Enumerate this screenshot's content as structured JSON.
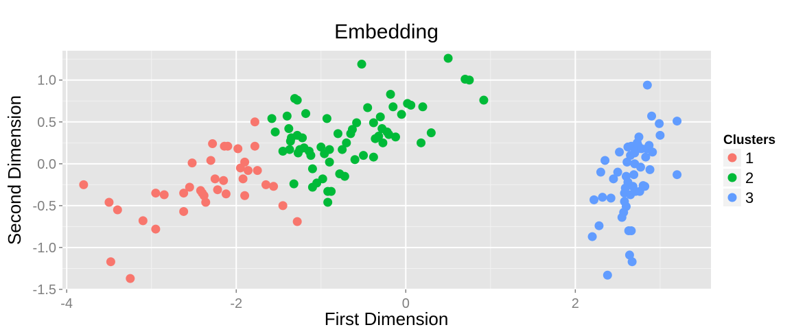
{
  "chart_data": {
    "type": "scatter",
    "title": "Embedding",
    "xlabel": "First Dimension",
    "ylabel": "Second Dimension",
    "xlim": [
      -4.05,
      3.6
    ],
    "ylim": [
      -1.5,
      1.35
    ],
    "xticks": [
      -4,
      -2,
      0,
      2
    ],
    "xtick_labels": [
      "-4",
      "-2",
      "0",
      "2"
    ],
    "yticks": [
      -1.5,
      -1.0,
      -0.5,
      0.0,
      0.5,
      1.0
    ],
    "ytick_labels": [
      "-1.5",
      "-1.0",
      "-0.5",
      "0.0",
      "0.5",
      "1.0"
    ],
    "grid": true,
    "legend_position": "right",
    "legend_title": "Clusters",
    "series": [
      {
        "name": "1",
        "color": "#F8766D",
        "points": [
          [
            -3.8,
            -0.25
          ],
          [
            -3.5,
            -0.46
          ],
          [
            -3.48,
            -1.17
          ],
          [
            -3.4,
            -0.55
          ],
          [
            -3.25,
            -1.37
          ],
          [
            -3.1,
            -0.68
          ],
          [
            -2.95,
            -0.78
          ],
          [
            -2.95,
            -0.35
          ],
          [
            -2.85,
            -0.37
          ],
          [
            -2.62,
            -0.57
          ],
          [
            -2.62,
            -0.35
          ],
          [
            -2.55,
            -0.28
          ],
          [
            -2.52,
            0.01
          ],
          [
            -2.42,
            -0.32
          ],
          [
            -2.4,
            -0.35
          ],
          [
            -2.38,
            -0.38
          ],
          [
            -2.36,
            -0.46
          ],
          [
            -2.3,
            0.04
          ],
          [
            -2.28,
            0.24
          ],
          [
            -2.25,
            -0.18
          ],
          [
            -2.22,
            -0.31
          ],
          [
            -2.15,
            -0.2
          ],
          [
            -2.14,
            0.21
          ],
          [
            -2.12,
            -0.36
          ],
          [
            -2.1,
            0.21
          ],
          [
            -1.98,
            0.18
          ],
          [
            -1.95,
            -0.05
          ],
          [
            -1.92,
            -0.18
          ],
          [
            -1.9,
            0.02
          ],
          [
            -1.9,
            -0.38
          ],
          [
            -1.86,
            -0.08
          ],
          [
            -1.78,
            0.21
          ],
          [
            -1.78,
            0.5
          ],
          [
            -1.75,
            -0.08
          ],
          [
            -1.65,
            -0.25
          ],
          [
            -1.56,
            -0.27
          ],
          [
            -1.45,
            -0.5
          ],
          [
            -1.28,
            -0.69
          ]
        ]
      },
      {
        "name": "2",
        "color": "#00BA38",
        "points": [
          [
            -1.58,
            0.54
          ],
          [
            -1.54,
            0.38
          ],
          [
            -1.45,
            0.15
          ],
          [
            -1.4,
            0.57
          ],
          [
            -1.38,
            0.42
          ],
          [
            -1.37,
            0.17
          ],
          [
            -1.36,
            0.27
          ],
          [
            -1.35,
            0.31
          ],
          [
            -1.32,
            -0.24
          ],
          [
            -1.31,
            0.78
          ],
          [
            -1.28,
            0.76
          ],
          [
            -1.28,
            0.34
          ],
          [
            -1.27,
            0.13
          ],
          [
            -1.25,
            0.17
          ],
          [
            -1.22,
            0.31
          ],
          [
            -1.2,
            0.19
          ],
          [
            -1.18,
            0.6
          ],
          [
            -1.14,
            0.15
          ],
          [
            -1.12,
            0.1
          ],
          [
            -1.1,
            -0.06
          ],
          [
            -1.1,
            -0.28
          ],
          [
            -1.05,
            -0.23
          ],
          [
            -1.0,
            0.2
          ],
          [
            -0.98,
            -0.18
          ],
          [
            -0.96,
            0.12
          ],
          [
            -0.93,
            0.54
          ],
          [
            -0.92,
            -0.33
          ],
          [
            -0.92,
            -0.46
          ],
          [
            -0.9,
            0.17
          ],
          [
            -0.9,
            0.02
          ],
          [
            -0.88,
            -0.33
          ],
          [
            -0.8,
            0.36
          ],
          [
            -0.78,
            -0.12
          ],
          [
            -0.75,
            0.17
          ],
          [
            -0.72,
            -0.15
          ],
          [
            -0.7,
            0.25
          ],
          [
            -0.65,
            0.36
          ],
          [
            -0.63,
            0.41
          ],
          [
            -0.6,
            0.05
          ],
          [
            -0.58,
            0.49
          ],
          [
            -0.52,
            1.19
          ],
          [
            -0.5,
            0.1
          ],
          [
            -0.45,
            0.67
          ],
          [
            -0.38,
            0.08
          ],
          [
            -0.38,
            0.49
          ],
          [
            -0.36,
            0.3
          ],
          [
            -0.32,
            0.33
          ],
          [
            -0.3,
            0.56
          ],
          [
            -0.28,
            0.42
          ],
          [
            -0.27,
            0.25
          ],
          [
            -0.22,
            0.38
          ],
          [
            -0.2,
            0.35
          ],
          [
            -0.18,
            0.83
          ],
          [
            -0.15,
            0.68
          ],
          [
            -0.12,
            0.32
          ],
          [
            -0.05,
            0.59
          ],
          [
            0.02,
            0.72
          ],
          [
            0.06,
            0.7
          ],
          [
            0.18,
            0.25
          ],
          [
            0.2,
            0.68
          ],
          [
            0.3,
            0.37
          ],
          [
            0.5,
            1.26
          ],
          [
            0.7,
            1.01
          ],
          [
            0.75,
            1.0
          ],
          [
            0.92,
            0.76
          ]
        ]
      },
      {
        "name": "3",
        "color": "#619CFF",
        "points": [
          [
            2.2,
            -0.87
          ],
          [
            2.22,
            -0.43
          ],
          [
            2.28,
            -0.74
          ],
          [
            2.3,
            -0.1
          ],
          [
            2.32,
            -0.4
          ],
          [
            2.35,
            0.04
          ],
          [
            2.38,
            -1.33
          ],
          [
            2.42,
            -0.41
          ],
          [
            2.45,
            -0.18
          ],
          [
            2.5,
            -0.1
          ],
          [
            2.52,
            0.14
          ],
          [
            2.55,
            -0.64
          ],
          [
            2.57,
            -0.58
          ],
          [
            2.58,
            -0.45
          ],
          [
            2.58,
            -0.35
          ],
          [
            2.59,
            -0.29
          ],
          [
            2.6,
            -0.51
          ],
          [
            2.6,
            -0.15
          ],
          [
            2.61,
            0.02
          ],
          [
            2.62,
            -0.22
          ],
          [
            2.62,
            0.2
          ],
          [
            2.63,
            -0.8
          ],
          [
            2.64,
            -1.09
          ],
          [
            2.65,
            -0.37
          ],
          [
            2.65,
            0.1
          ],
          [
            2.66,
            0.21
          ],
          [
            2.66,
            -0.8
          ],
          [
            2.67,
            -1.17
          ],
          [
            2.68,
            -0.27
          ],
          [
            2.69,
            -0.13
          ],
          [
            2.7,
            0.13
          ],
          [
            2.7,
            0.0
          ],
          [
            2.71,
            -0.33
          ],
          [
            2.72,
            0.17
          ],
          [
            2.73,
            0.25
          ],
          [
            2.74,
            0.22
          ],
          [
            2.75,
            0.32
          ],
          [
            2.76,
            -0.33
          ],
          [
            2.77,
            -0.04
          ],
          [
            2.78,
            0.18
          ],
          [
            2.8,
            -0.26
          ],
          [
            2.82,
            -0.27
          ],
          [
            2.83,
            0.08
          ],
          [
            2.84,
            0.18
          ],
          [
            2.85,
            0.94
          ],
          [
            2.87,
            0.22
          ],
          [
            2.88,
            -0.07
          ],
          [
            2.9,
            0.57
          ],
          [
            2.91,
            0.14
          ],
          [
            2.99,
            0.48
          ],
          [
            3.0,
            0.34
          ],
          [
            3.2,
            -0.13
          ],
          [
            3.2,
            0.51
          ]
        ]
      }
    ]
  }
}
